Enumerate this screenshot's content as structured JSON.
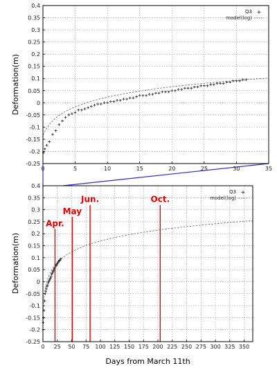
{
  "chart_data": [
    {
      "type": "scatter",
      "id": "top",
      "title": "",
      "xlabel": "",
      "ylabel": "Deformation(m)",
      "xlim": [
        0,
        35
      ],
      "ylim": [
        -0.25,
        0.4
      ],
      "xticks": [
        0,
        5,
        10,
        15,
        20,
        25,
        30,
        35
      ],
      "yticks": [
        -0.25,
        -0.2,
        -0.15,
        -0.1,
        -0.05,
        0,
        0.05,
        0.1,
        0.15,
        0.2,
        0.25,
        0.3,
        0.35,
        0.4
      ],
      "grid": true,
      "legend_position": "top-right",
      "series": [
        {
          "name": "Q3",
          "style": "points",
          "x": [
            0.1,
            0.3,
            0.6,
            1.0,
            1.5,
            2.0,
            2.5,
            3.0,
            3.5,
            4.0,
            4.5,
            5.0,
            5.5,
            6.0,
            6.5,
            7.0,
            7.5,
            8.0,
            8.5,
            9.0,
            9.5,
            10.0,
            10.5,
            11.0,
            11.5,
            12.0,
            12.5,
            13.0,
            13.5,
            14.0,
            14.5,
            15.0,
            15.5,
            16.0,
            16.5,
            17.0,
            17.5,
            18.0,
            18.5,
            19.0,
            19.5,
            20.0,
            20.5,
            21.0,
            21.5,
            22.0,
            22.5,
            23.0,
            23.5,
            24.0,
            24.5,
            25.0,
            25.5,
            26.0,
            26.5,
            27.0,
            27.5,
            28.0,
            28.5,
            29.0,
            29.5,
            30.0,
            30.5,
            31.0,
            31.5
          ],
          "y": [
            -0.205,
            -0.19,
            -0.175,
            -0.16,
            -0.13,
            -0.115,
            -0.09,
            -0.075,
            -0.06,
            -0.05,
            -0.045,
            -0.04,
            -0.03,
            -0.03,
            -0.025,
            -0.02,
            -0.015,
            -0.01,
            -0.005,
            -0.005,
            0.0,
            0.0,
            0.005,
            0.005,
            0.01,
            0.01,
            0.015,
            0.015,
            0.02,
            0.02,
            0.025,
            0.03,
            0.03,
            0.03,
            0.035,
            0.035,
            0.04,
            0.04,
            0.045,
            0.045,
            0.045,
            0.05,
            0.05,
            0.055,
            0.055,
            0.06,
            0.06,
            0.06,
            0.065,
            0.065,
            0.07,
            0.07,
            0.07,
            0.075,
            0.075,
            0.08,
            0.08,
            0.08,
            0.085,
            0.085,
            0.09,
            0.09,
            0.09,
            0.095,
            0.095
          ]
        },
        {
          "name": "model(log)",
          "style": "dashed",
          "model": {
            "kind": "log",
            "a": 0.066,
            "b": -0.135,
            "t0": 1.0
          }
        }
      ]
    },
    {
      "type": "scatter",
      "id": "bottom",
      "title": "",
      "xlabel": "Days from March 11th",
      "ylabel": "Deformation(m)",
      "xlim": [
        0,
        365
      ],
      "ylim": [
        -0.25,
        0.4
      ],
      "xticks": [
        0,
        25,
        50,
        75,
        100,
        125,
        150,
        175,
        200,
        225,
        250,
        275,
        300,
        325,
        350
      ],
      "yticks": [
        -0.25,
        -0.2,
        -0.15,
        -0.1,
        -0.05,
        0,
        0.05,
        0.1,
        0.15,
        0.2,
        0.25,
        0.3,
        0.35,
        0.4
      ],
      "grid": true,
      "legend_position": "top-right",
      "series": [
        {
          "name": "Q3",
          "style": "points",
          "x": [
            0.1,
            0.5,
            1,
            2,
            3,
            4,
            5,
            6,
            7,
            8,
            9,
            10,
            11,
            12,
            13,
            14,
            15,
            16,
            17,
            18,
            19,
            20,
            21,
            22,
            23,
            24,
            25,
            26,
            27,
            28,
            29,
            30,
            31
          ],
          "y": [
            -0.2,
            -0.17,
            -0.15,
            -0.12,
            -0.08,
            -0.05,
            -0.04,
            -0.03,
            -0.02,
            -0.015,
            -0.005,
            0.0,
            0.005,
            0.01,
            0.015,
            0.02,
            0.03,
            0.035,
            0.04,
            0.045,
            0.05,
            0.055,
            0.06,
            0.065,
            0.07,
            0.07,
            0.075,
            0.08,
            0.085,
            0.085,
            0.09,
            0.09,
            0.095
          ]
        },
        {
          "name": "model(log)",
          "style": "dashed",
          "model": {
            "kind": "log",
            "a": 0.066,
            "b": -0.135,
            "t0": 1.0
          }
        }
      ],
      "annotations": [
        {
          "label": "Apr.",
          "x": 21,
          "y_top": 0.22,
          "color": "#e00000"
        },
        {
          "label": "May",
          "x": 51,
          "y_top": 0.27,
          "color": "#e00000"
        },
        {
          "label": "Jun.",
          "x": 82,
          "y_top": 0.32,
          "color": "#e00000"
        },
        {
          "label": "Oct.",
          "x": 204,
          "y_top": 0.32,
          "color": "#e00000"
        }
      ]
    }
  ],
  "colors": {
    "points": "#333333",
    "model": "#666666",
    "grid": "#999999",
    "zoom_connector": "#2a2acc",
    "annotation": "#e00000"
  }
}
